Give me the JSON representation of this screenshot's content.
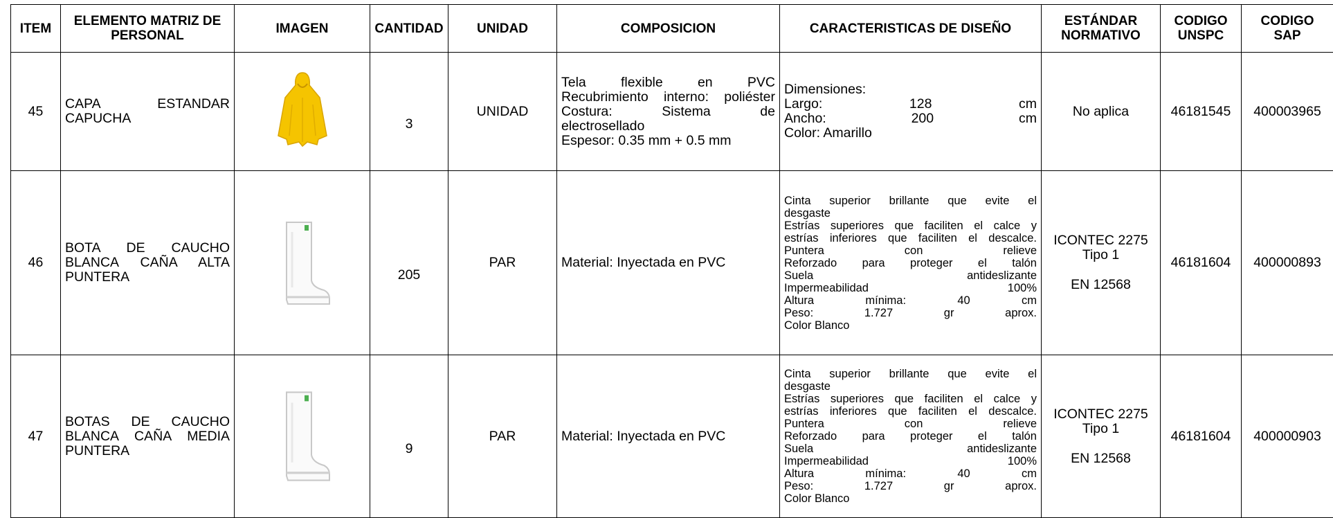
{
  "table": {
    "header": [
      "ITEM",
      "ELEMENTO MATRIZ DE PERSONAL",
      "IMAGEN",
      "CANTIDAD",
      "UNIDAD",
      "COMPOSICION",
      "CARACTERISTICAS DE DISEÑO",
      "ESTÁNDAR NORMATIVO",
      "CODIGO UNSPC",
      "CODIGO SAP"
    ],
    "rows": [
      {
        "item": "45",
        "elemento": [
          "CAPA ESTANDAR",
          "CAPUCHA"
        ],
        "cantidad": "3",
        "unidad": "UNIDAD",
        "composicion": [
          "Tela flexible en PVC",
          "Recubrimiento interno: poliéster",
          "Costura: Sistema de",
          "electrosellado",
          "Espesor: 0.35 mm + 0.5 mm"
        ],
        "caracteristicas": [
          "Dimensiones:",
          "Largo: 128 cm",
          "Ancho: 200 cm",
          "Color: Amarillo"
        ],
        "estandar": [
          [
            "No aplica"
          ]
        ],
        "unspc": "46181545",
        "sap": "400003965"
      },
      {
        "item": "46",
        "elemento": [
          "BOTA DE CAUCHO",
          "BLANCA CAÑA ALTA",
          "PUNTERA"
        ],
        "cantidad": "205",
        "unidad": "PAR",
        "composicion": [
          "Material: Inyectada en PVC"
        ],
        "caracteristicas": [
          "Cinta superior brillante que evite el",
          "desgaste",
          "Estrías superiores que faciliten el calce y",
          "estrías inferiores que faciliten el descalce.",
          "Puntera con relieve",
          "Reforzado para proteger el talón",
          "Suela antideslizante",
          "Impermeabilidad 100%",
          "Altura mínima: 40 cm",
          "Peso: 1.727 gr aprox.",
          "Color Blanco"
        ],
        "estandar": [
          [
            "ICONTEC 2275",
            "Tipo 1"
          ],
          [
            "EN 12568"
          ]
        ],
        "unspc": "46181604",
        "sap": "400000893"
      },
      {
        "item": "47",
        "elemento": [
          "BOTAS DE CAUCHO",
          "BLANCA CAÑA MEDIA",
          "PUNTERA"
        ],
        "cantidad": "9",
        "unidad": "PAR",
        "composicion": [
          "Material: Inyectada en PVC"
        ],
        "caracteristicas": [
          "Cinta superior brillante que evite el",
          "desgaste",
          "Estrías superiores que faciliten el calce y",
          "estrías inferiores que faciliten el descalce.",
          "Puntera con relieve",
          "Reforzado para proteger el talón",
          "Suela antideslizante",
          "Impermeabilidad 100%",
          "Altura mínima: 40 cm",
          "Peso: 1.727 gr aprox.",
          "Color Blanco"
        ],
        "estandar": [
          [
            "ICONTEC 2275",
            "Tipo 1"
          ],
          [
            "EN 12568"
          ]
        ],
        "unspc": "46181604",
        "sap": "400000903"
      }
    ]
  }
}
